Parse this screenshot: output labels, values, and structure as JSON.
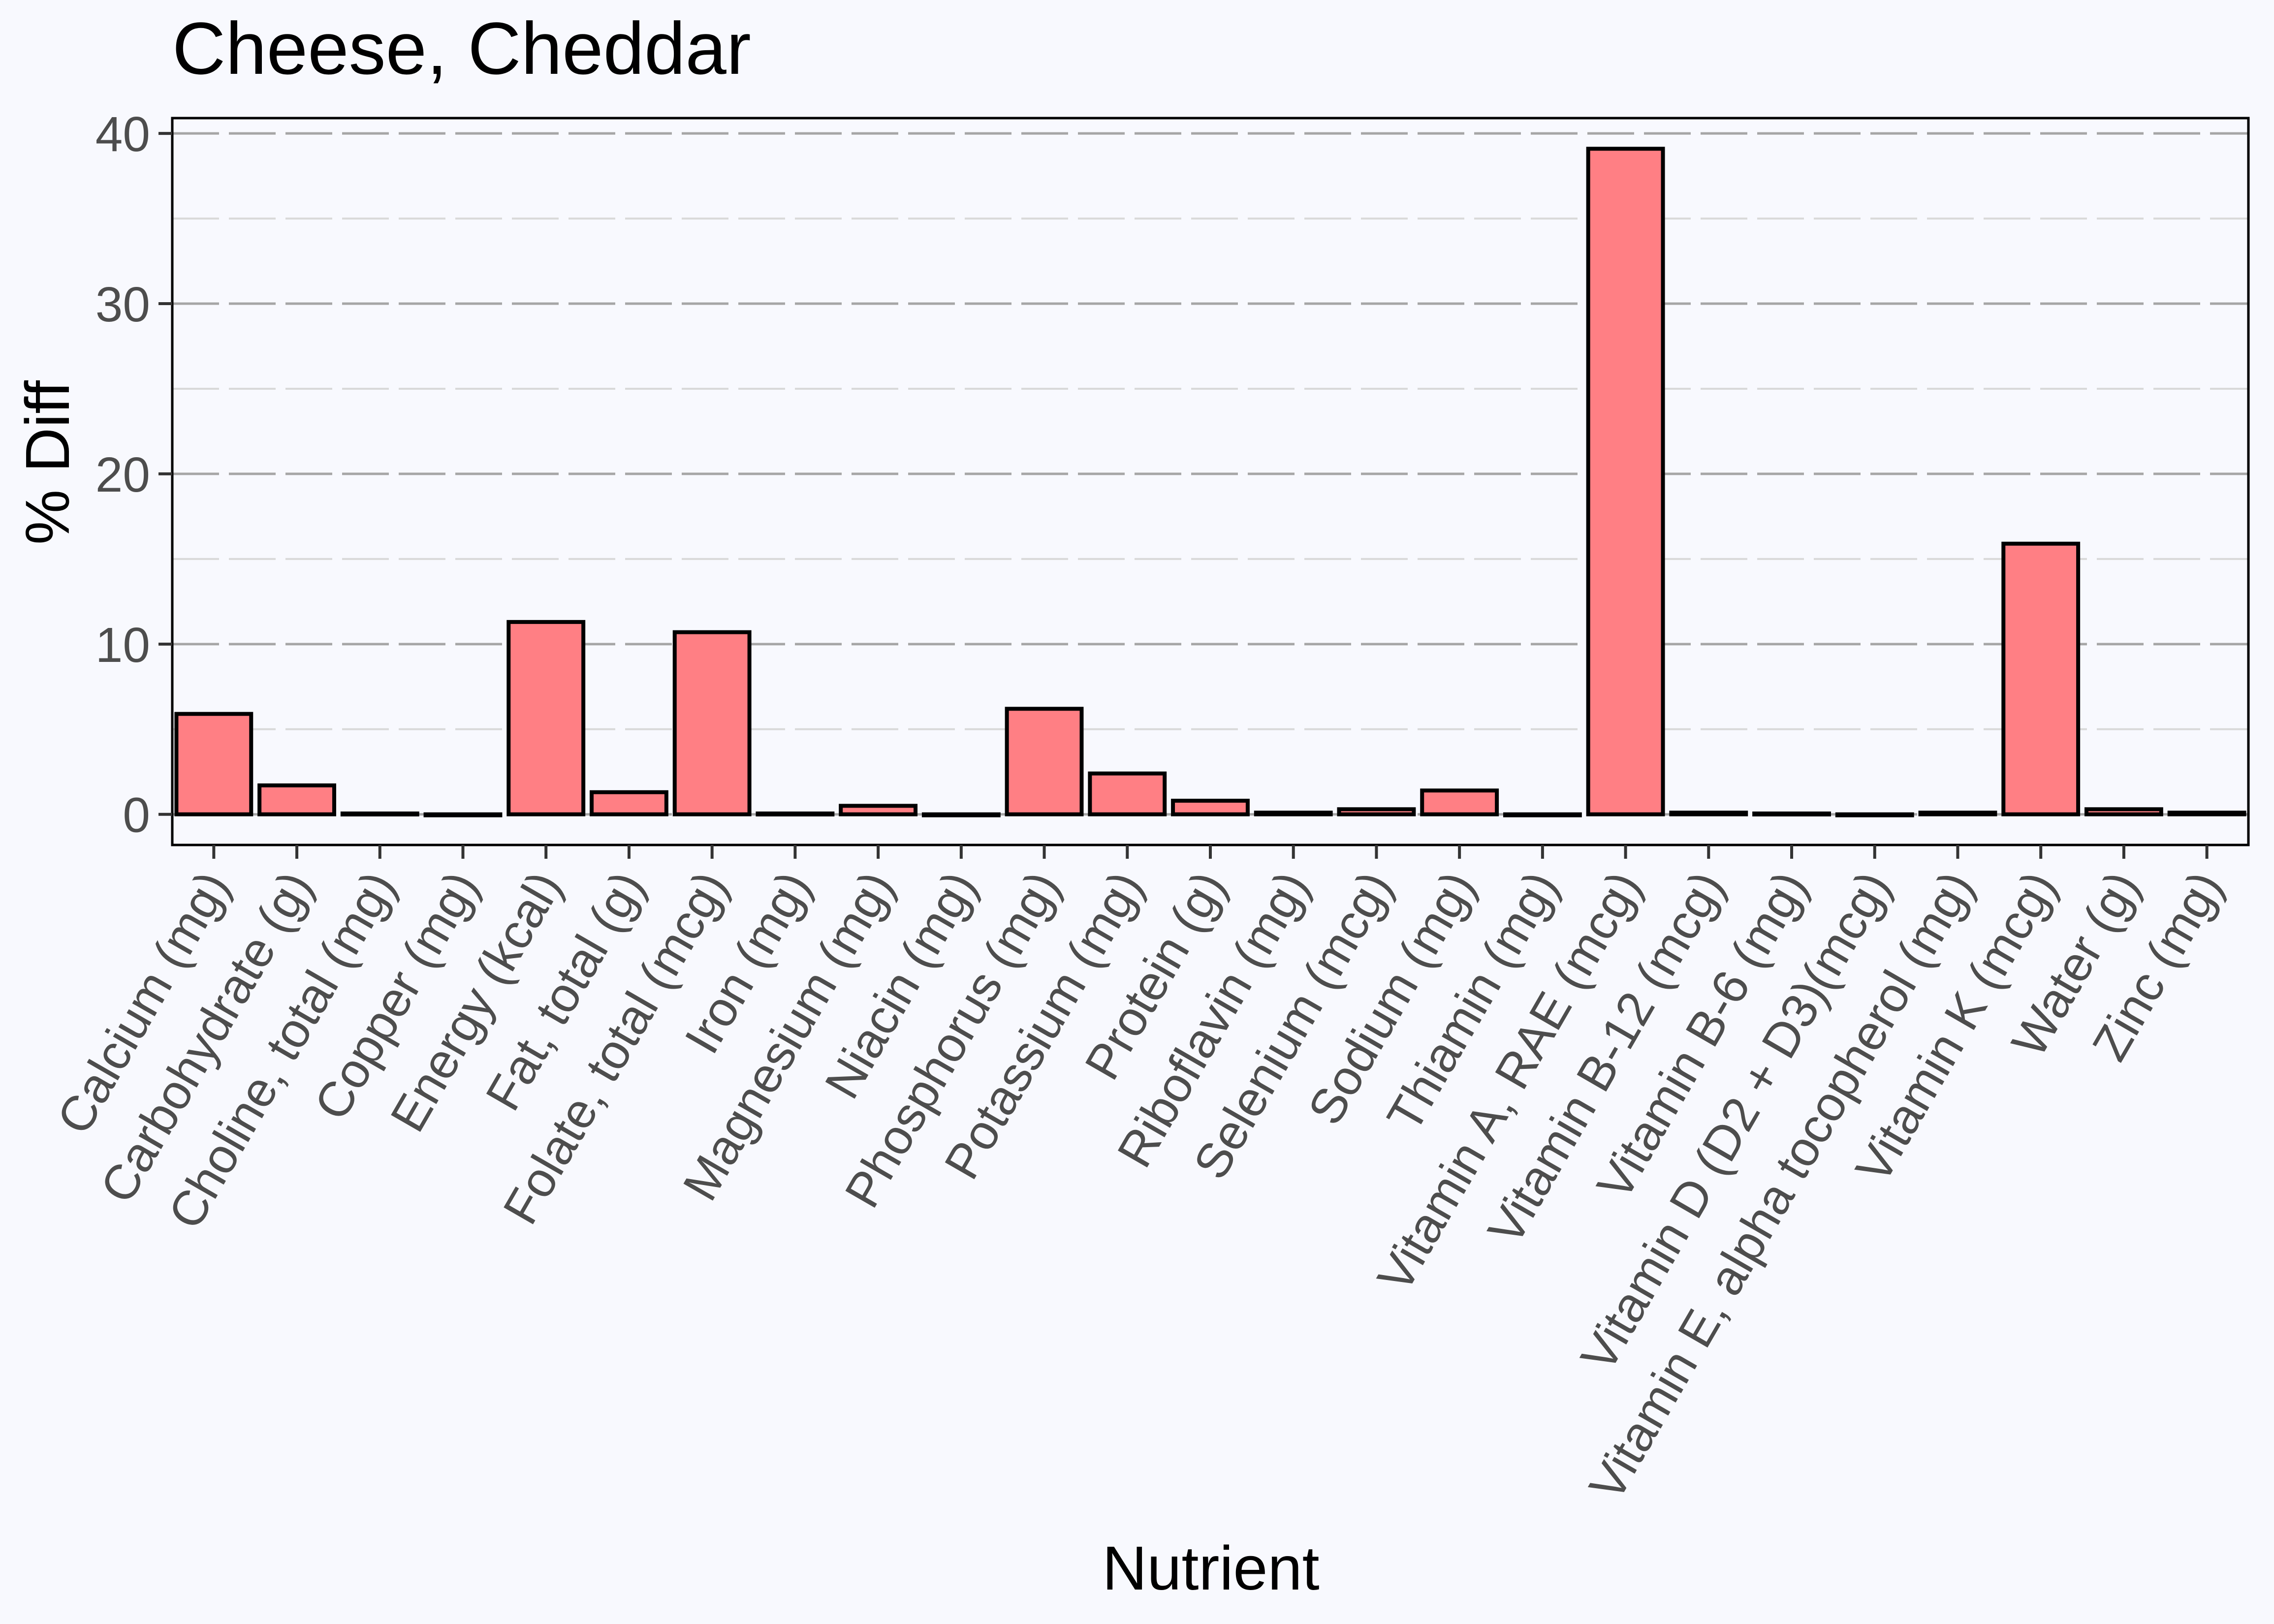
{
  "chart_data": {
    "type": "bar",
    "title": "Cheese, Cheddar",
    "xlabel": "Nutrient",
    "ylabel": "% Diff",
    "ylim": [
      -1.8,
      40.9
    ],
    "yticks": [
      0,
      10,
      20,
      30,
      40
    ],
    "grid": true,
    "legend": "none",
    "categories": [
      "Calcium (mg)",
      "Carbohydrate (g)",
      "Choline, total (mg)",
      "Copper (mg)",
      "Energy (kcal)",
      "Fat, total (g)",
      "Folate, total (mcg)",
      "Iron (mg)",
      "Magnesium (mg)",
      "Niacin (mg)",
      "Phosphorus (mg)",
      "Potassium (mg)",
      "Protein (g)",
      "Riboflavin (mg)",
      "Selenium (mcg)",
      "Sodium (mg)",
      "Thiamin (mg)",
      "Vitamin A, RAE (mcg)",
      "Vitamin B-12 (mcg)",
      "Vitamin B-6 (mg)",
      "Vitamin D (D2 + D3)(mcg)",
      "Vitamin E, alpha tocopherol (mg)",
      "Vitamin K (mcg)",
      "Water (g)",
      "Zinc (mg)"
    ],
    "values": [
      5.9,
      1.7,
      0.05,
      0.0,
      11.3,
      1.3,
      10.7,
      0.05,
      0.5,
      0.0,
      6.2,
      2.4,
      0.8,
      0.1,
      0.3,
      1.4,
      0.0,
      39.1,
      0.1,
      0.05,
      0.0,
      0.1,
      15.9,
      0.3,
      0.1
    ],
    "colors": {
      "bar_fill": "#FF7F84",
      "bar_stroke": "#000000",
      "background": "#F8F9FE"
    }
  }
}
